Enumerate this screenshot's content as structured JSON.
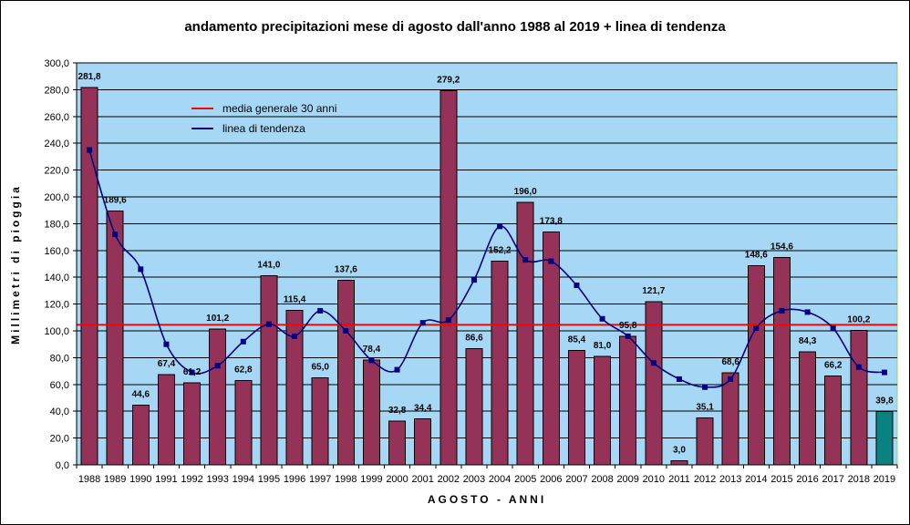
{
  "chart_data": {
    "type": "bar",
    "title": "andamento precipitazioni mese di agosto dall'anno 1988 al 2019 + linea di tendenza",
    "xlabel": "AGOSTO - ANNI",
    "ylabel": "Millimetri di pioggia",
    "ylim": [
      0,
      300
    ],
    "ytick_step": 20,
    "ytick_labels": [
      "0,0",
      "20,0",
      "40,0",
      "60,0",
      "80,0",
      "100,0",
      "120,0",
      "140,0",
      "160,0",
      "180,0",
      "200,0",
      "220,0",
      "240,0",
      "260,0",
      "280,0",
      "300,0"
    ],
    "categories": [
      "1988",
      "1989",
      "1990",
      "1991",
      "1992",
      "1993",
      "1994",
      "1995",
      "1996",
      "1997",
      "1998",
      "1999",
      "2000",
      "2001",
      "2002",
      "2003",
      "2004",
      "2005",
      "2006",
      "2007",
      "2008",
      "2009",
      "2010",
      "2011",
      "2012",
      "2013",
      "2014",
      "2015",
      "2016",
      "2017",
      "2018",
      "2019"
    ],
    "values": [
      281.8,
      189.6,
      44.6,
      67.4,
      61.2,
      101.2,
      62.8,
      141.0,
      115.4,
      65.0,
      137.6,
      78.4,
      32.8,
      34.4,
      279.2,
      86.6,
      152.2,
      196.0,
      173.8,
      85.4,
      81.0,
      95.8,
      121.7,
      3.0,
      35.1,
      68.6,
      148.6,
      154.6,
      84.3,
      66.2,
      100.2,
      39.8
    ],
    "value_labels": [
      "281,8",
      "189,6",
      "44,6",
      "67,4",
      "61,2",
      "101,2",
      "62,8",
      "141,0",
      "115,4",
      "65,0",
      "137,6",
      "78,4",
      "32,8",
      "34,4",
      "279,2",
      "86,6",
      "152,2",
      "196,0",
      "173,8",
      "85,4",
      "81,0",
      "95,8",
      "121,7",
      "3,0",
      "35,1",
      "68,6",
      "148,6",
      "154,6",
      "84,3",
      "66,2",
      "100,2",
      "39,8"
    ],
    "trend_values": [
      235,
      172,
      146,
      90,
      69,
      74,
      92,
      105,
      96,
      115,
      100,
      78,
      71,
      106,
      108,
      138,
      178,
      153,
      152,
      134,
      109,
      96,
      76,
      64,
      58,
      64,
      102,
      115,
      114,
      102,
      73,
      69
    ],
    "mean_value": 104.5,
    "legend": [
      {
        "label": "media generale 30 anni",
        "color": "#ff0000"
      },
      {
        "label": "linea di tendenza",
        "color": "#000080"
      }
    ],
    "legend_position": "top-left",
    "colors": {
      "plot_bg": "#a6d8f5",
      "bar": "#953258",
      "bar_last": "#0a8282",
      "trend": "#000080",
      "mean": "#ff0000",
      "grid": "#000000"
    }
  }
}
